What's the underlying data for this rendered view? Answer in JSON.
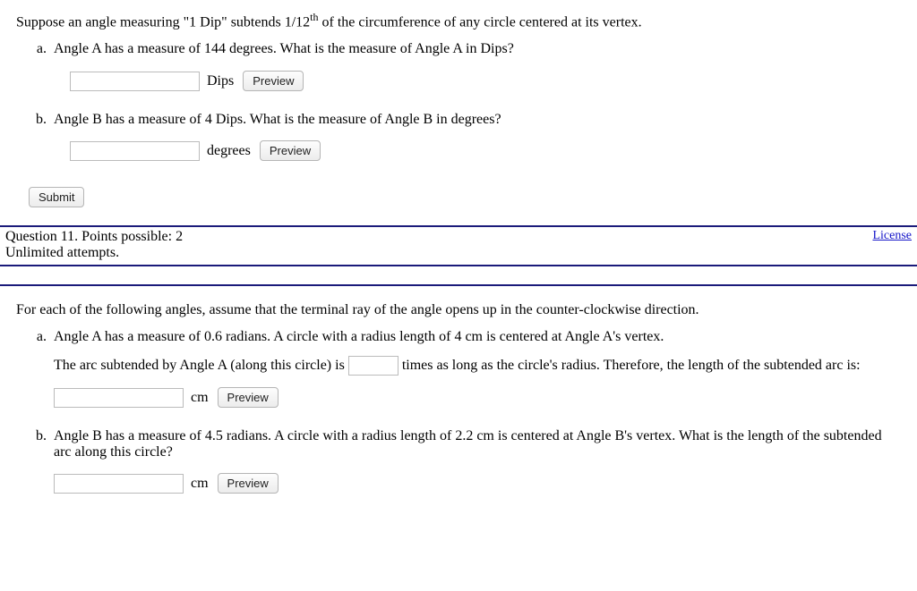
{
  "q10": {
    "stem_pre": "Suppose an angle measuring \"1 Dip\" subtends 1/12",
    "stem_sup": "th",
    "stem_post": " of the circumference of any circle centered at its vertex.",
    "a_prompt": "Angle A has a measure of 144 degrees. What is the measure of Angle A in Dips?",
    "a_unit": "Dips",
    "b_prompt": "Angle B has a measure of 4 Dips. What is the measure of Angle B in degrees?",
    "b_unit": "degrees",
    "preview": "Preview",
    "submit": "Submit"
  },
  "meta": {
    "line1": "Question 11. Points possible: 2",
    "line2": "Unlimited attempts.",
    "license": "License"
  },
  "q11": {
    "stem": "For each of the following angles, assume that the terminal ray of the angle opens up in the counter-clockwise direction.",
    "a_prompt": "Angle A has a measure of 0.6 radians. A circle with a radius length of 4 cm is centered at Angle A's vertex.",
    "a_line_pre": "The arc subtended by Angle A (along this circle) is ",
    "a_line_post": " times as long as the circle's radius. Therefore, the length of the subtended arc is:",
    "a_unit": "cm",
    "b_prompt": "Angle B has a measure of 4.5 radians. A circle with a radius length of 2.2 cm is centered at Angle B's vertex. What is the length of the subtended arc along this circle?",
    "b_unit": "cm",
    "preview": "Preview"
  }
}
